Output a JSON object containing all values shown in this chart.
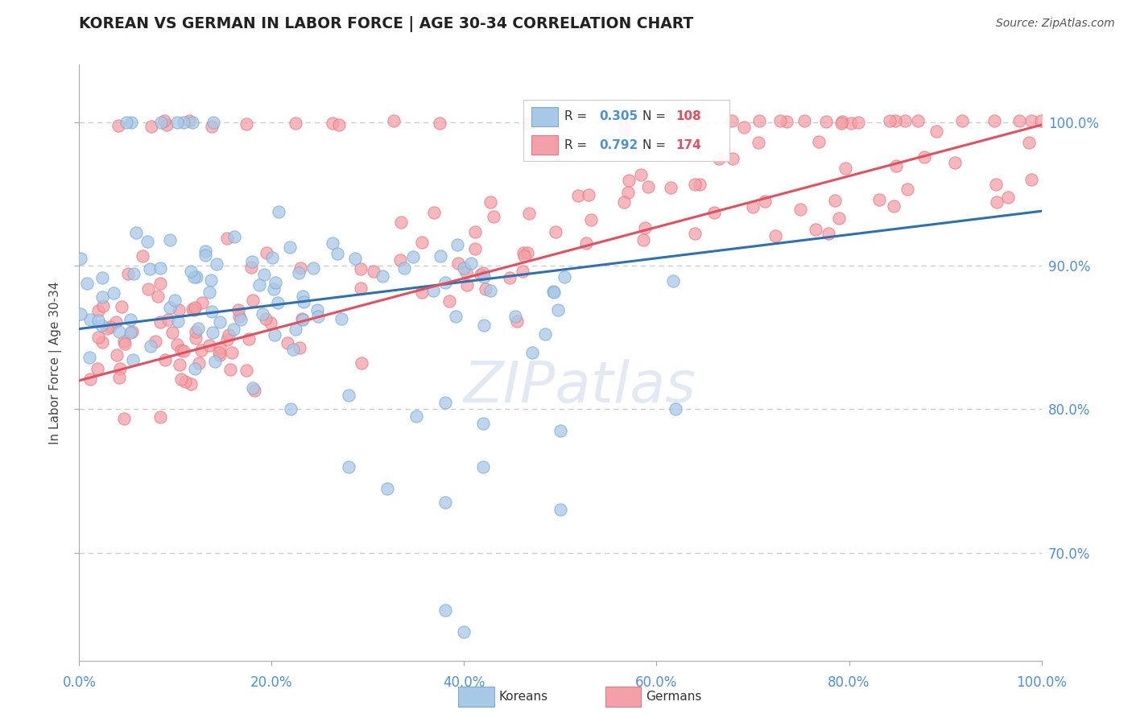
{
  "title": "KOREAN VS GERMAN IN LABOR FORCE | AGE 30-34 CORRELATION CHART",
  "source_text": "Source: ZipAtlas.com",
  "ylabel": "In Labor Force | Age 30-34",
  "xlim": [
    0.0,
    1.0
  ],
  "ylim": [
    0.625,
    1.04
  ],
  "xtick_labels": [
    "0.0%",
    "20.0%",
    "40.0%",
    "60.0%",
    "80.0%",
    "100.0%"
  ],
  "xtick_vals": [
    0.0,
    0.2,
    0.4,
    0.6,
    0.8,
    1.0
  ],
  "ytick_labels": [
    "70.0%",
    "80.0%",
    "90.0%",
    "100.0%"
  ],
  "ytick_vals": [
    0.7,
    0.8,
    0.9,
    1.0
  ],
  "korean_color": "#a8c8e8",
  "german_color": "#f4a0a8",
  "korean_edge_color": "#7aaccf",
  "german_edge_color": "#e87880",
  "korean_line_color": "#3070b0",
  "german_line_color": "#e05060",
  "korean_R": 0.305,
  "korean_N": 108,
  "german_R": 0.792,
  "german_N": 174,
  "watermark": "ZIPatlas",
  "background_color": "#ffffff",
  "grid_color": "#c8c8c8",
  "title_color": "#222222",
  "label_color": "#5090d0",
  "legend_text_color": "#333333",
  "korean_line_intercept": 0.856,
  "korean_line_slope": 0.082,
  "german_line_intercept": 0.82,
  "german_line_slope": 0.178
}
